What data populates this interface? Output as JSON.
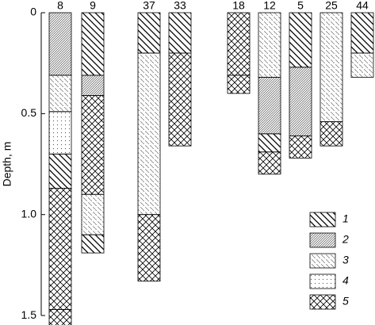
{
  "chart_data": {
    "type": "column-section",
    "y_label": "Depth, m",
    "ylim": [
      0,
      1.55
    ],
    "yticks": [
      0,
      0.5,
      {
        "value": 1,
        "label": "1.0"
      },
      1.5
    ],
    "legend": [
      "1",
      "2",
      "3",
      "4",
      "5"
    ],
    "columns": [
      {
        "label": "8",
        "layers": [
          {
            "top": 0,
            "bottom": 0.31,
            "pattern": "2"
          },
          {
            "top": 0.31,
            "bottom": 0.49,
            "pattern": "3"
          },
          {
            "top": 0.49,
            "bottom": 0.7,
            "pattern": "4"
          },
          {
            "top": 0.7,
            "bottom": 0.87,
            "pattern": "1"
          },
          {
            "top": 0.87,
            "bottom": 1.47,
            "pattern": "5"
          },
          {
            "top": 1.47,
            "bottom": 1.55,
            "pattern": "5"
          }
        ]
      },
      {
        "label": "9",
        "layers": [
          {
            "top": 0,
            "bottom": 0.31,
            "pattern": "1"
          },
          {
            "top": 0.31,
            "bottom": 0.41,
            "pattern": "2"
          },
          {
            "top": 0.41,
            "bottom": 0.9,
            "pattern": "5"
          },
          {
            "top": 0.9,
            "bottom": 1.1,
            "pattern": "3"
          },
          {
            "top": 1.1,
            "bottom": 1.19,
            "pattern": "1"
          }
        ]
      },
      {
        "label": "37",
        "layers": [
          {
            "top": 0,
            "bottom": 0.2,
            "pattern": "1"
          },
          {
            "top": 0.2,
            "bottom": 1,
            "pattern": "3"
          },
          {
            "top": 1,
            "bottom": 1.33,
            "pattern": "5"
          }
        ]
      },
      {
        "label": "33",
        "layers": [
          {
            "top": 0,
            "bottom": 0.2,
            "pattern": "1"
          },
          {
            "top": 0.2,
            "bottom": 0.66,
            "pattern": "5"
          }
        ]
      },
      {
        "label": "18",
        "layers": [
          {
            "top": 0,
            "bottom": 0.31,
            "pattern": "5"
          },
          {
            "top": 0.31,
            "bottom": 0.4,
            "pattern": "5"
          }
        ]
      },
      {
        "label": "12",
        "layers": [
          {
            "top": 0,
            "bottom": 0.32,
            "pattern": "3"
          },
          {
            "top": 0.32,
            "bottom": 0.6,
            "pattern": "2"
          },
          {
            "top": 0.6,
            "bottom": 0.69,
            "pattern": "1"
          },
          {
            "top": 0.69,
            "bottom": 0.8,
            "pattern": "5"
          }
        ]
      },
      {
        "label": "5",
        "layers": [
          {
            "top": 0,
            "bottom": 0.27,
            "pattern": "1"
          },
          {
            "top": 0.27,
            "bottom": 0.61,
            "pattern": "2"
          },
          {
            "top": 0.61,
            "bottom": 0.72,
            "pattern": "5"
          }
        ]
      },
      {
        "label": "25",
        "layers": [
          {
            "top": 0,
            "bottom": 0.54,
            "pattern": "3"
          },
          {
            "top": 0.54,
            "bottom": 0.66,
            "pattern": "5"
          }
        ]
      },
      {
        "label": "44",
        "layers": [
          {
            "top": 0,
            "bottom": 0.2,
            "pattern": "1"
          },
          {
            "top": 0.2,
            "bottom": 0.32,
            "pattern": "3"
          }
        ]
      }
    ]
  }
}
